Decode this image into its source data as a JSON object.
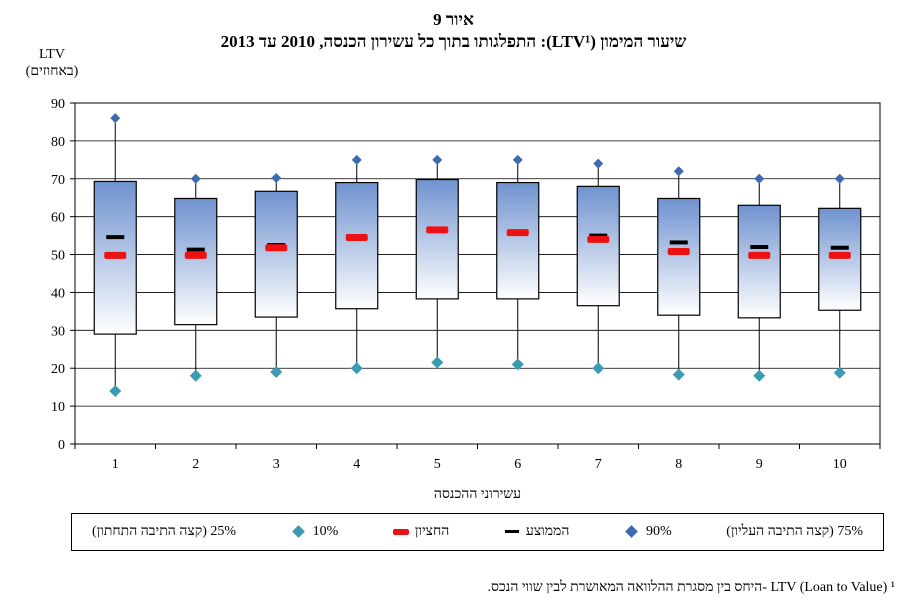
{
  "figure_label": "איור 9",
  "title": "שיעור המימון (LTV¹): התפלגותו בתוך כל עשירון הכנסה, 2010 עד 2013",
  "chart_data": {
    "type": "box",
    "title": "שיעור המימון (LTV¹): התפלגותו בתוך כל עשירון הכנסה, 2010 עד 2013",
    "ylabel": [
      "LTV",
      "(באחוזים)"
    ],
    "xlabel": "עשירוני ההכנסה",
    "categories": [
      "1",
      "2",
      "3",
      "4",
      "5",
      "6",
      "7",
      "8",
      "9",
      "10"
    ],
    "yticks": [
      "0",
      "10",
      "20",
      "30",
      "40",
      "50",
      "60",
      "70",
      "80",
      "90"
    ],
    "ylim": [
      0,
      90
    ],
    "grid": true,
    "p10": [
      14,
      18,
      19,
      20,
      21.5,
      21,
      20,
      18.3,
      18,
      18.8
    ],
    "p25": [
      29,
      31.5,
      33.5,
      35.7,
      38.3,
      38.3,
      36.5,
      34,
      33.3,
      35.3
    ],
    "median": [
      49.8,
      49.8,
      51.8,
      54.5,
      56.5,
      55.8,
      54,
      50.8,
      49.8,
      49.8
    ],
    "mean": [
      54.6,
      51.3,
      52.5,
      54.4,
      56.5,
      55.9,
      55,
      53.2,
      52,
      51.8
    ],
    "p75": [
      69.3,
      64.8,
      66.7,
      69,
      69.8,
      69,
      68,
      64.8,
      63,
      62.2
    ],
    "p90": [
      86,
      70,
      70.2,
      75,
      75,
      75,
      74,
      72,
      70,
      70
    ],
    "colors": {
      "p90_marker": "#3d6ab0",
      "p10_marker": "#3a9bb3",
      "median_marker": "#ee1111",
      "mean_marker": "#000000",
      "box_top": "#6f92cf",
      "box_bottom": "#ffffff"
    },
    "legend": {
      "placement": "bottom",
      "items": [
        {
          "key": "p25",
          "label": "25% (קצה התיבה התחתון)",
          "symbol": "none"
        },
        {
          "key": "p10",
          "label": "10%",
          "symbol": "diamond-teal"
        },
        {
          "key": "median",
          "label": "החציון",
          "symbol": "dash-red"
        },
        {
          "key": "mean",
          "label": "הממוצע",
          "symbol": "dash-black"
        },
        {
          "key": "p90",
          "label": "90%",
          "symbol": "diamond-blue"
        },
        {
          "key": "p75",
          "label": "75% (קצה התיבה העליון)",
          "symbol": "none"
        }
      ]
    }
  },
  "footnote": "¹ LTV (Loan to Value) -היחס בין מסגרת ההלוואה המאושרת לבין שווי הנכס."
}
